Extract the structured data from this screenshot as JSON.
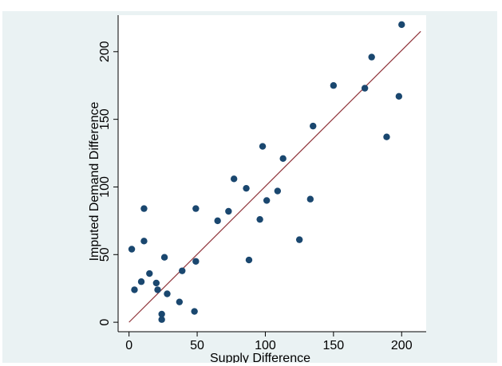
{
  "chart_data": {
    "type": "scatter",
    "xlabel": "Supply Difference",
    "ylabel": "Imputed Demand Difference",
    "xlim": [
      -8,
      218
    ],
    "ylim": [
      -7,
      227
    ],
    "x_ticks": [
      0,
      50,
      100,
      150,
      200
    ],
    "y_ticks": [
      0,
      50,
      100,
      150,
      200
    ],
    "grid": false,
    "legend": "none",
    "colors": {
      "points": "#1a476f",
      "fit_line": "#90353b",
      "plot_bg": "#ffffff",
      "frame_bg": "#eaf2f3"
    },
    "series": [
      {
        "kind": "points",
        "points": [
          {
            "x": 2,
            "y": 54
          },
          {
            "x": 4,
            "y": 24
          },
          {
            "x": 9,
            "y": 30
          },
          {
            "x": 11,
            "y": 84
          },
          {
            "x": 11,
            "y": 60
          },
          {
            "x": 15,
            "y": 36
          },
          {
            "x": 20,
            "y": 29
          },
          {
            "x": 21,
            "y": 24
          },
          {
            "x": 24,
            "y": 6
          },
          {
            "x": 24,
            "y": 2
          },
          {
            "x": 26,
            "y": 48
          },
          {
            "x": 28,
            "y": 21
          },
          {
            "x": 37,
            "y": 15
          },
          {
            "x": 39,
            "y": 38
          },
          {
            "x": 48,
            "y": 8
          },
          {
            "x": 49,
            "y": 45
          },
          {
            "x": 49,
            "y": 84
          },
          {
            "x": 65,
            "y": 75
          },
          {
            "x": 73,
            "y": 82
          },
          {
            "x": 77,
            "y": 106
          },
          {
            "x": 86,
            "y": 99
          },
          {
            "x": 88,
            "y": 46
          },
          {
            "x": 96,
            "y": 76
          },
          {
            "x": 98,
            "y": 130
          },
          {
            "x": 101,
            "y": 90
          },
          {
            "x": 109,
            "y": 97
          },
          {
            "x": 113,
            "y": 121
          },
          {
            "x": 125,
            "y": 61
          },
          {
            "x": 133,
            "y": 91
          },
          {
            "x": 135,
            "y": 145
          },
          {
            "x": 150,
            "y": 175
          },
          {
            "x": 173,
            "y": 173
          },
          {
            "x": 178,
            "y": 196
          },
          {
            "x": 189,
            "y": 137
          },
          {
            "x": 198,
            "y": 167
          },
          {
            "x": 200,
            "y": 220
          }
        ]
      },
      {
        "kind": "fit_line",
        "points": [
          {
            "x": 0,
            "y": 0
          },
          {
            "x": 214,
            "y": 215
          }
        ]
      }
    ]
  }
}
